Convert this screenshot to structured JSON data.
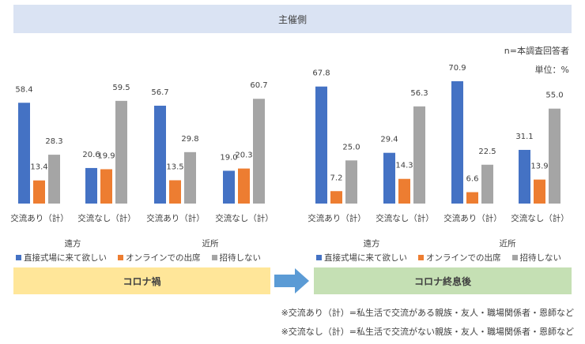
{
  "header": {
    "title": "主催側"
  },
  "notes": {
    "n": "n=本調査回答者",
    "unit": "単位：%"
  },
  "colors": {
    "direct": "#4472c4",
    "online": "#ed7d31",
    "invite": "#a5a5a5",
    "header_bg": "#dae3f3",
    "corona_bg": "#ffe699",
    "post_bg": "#c5e0b4",
    "arrow": "#5b9bd5"
  },
  "chart_data": [
    {
      "type": "bar",
      "panel": "コロナ禍",
      "categories": [
        "交流あり（計）",
        "交流なし（計）",
        "交流あり（計）",
        "交流なし（計）"
      ],
      "groups": [
        {
          "label": "遠方"
        },
        {
          "label": "近所"
        }
      ],
      "series": [
        {
          "name": "直接式場に来て欲しい",
          "values": [
            58.4,
            20.6,
            56.7,
            19.0
          ]
        },
        {
          "name": "オンラインでの出席",
          "values": [
            13.4,
            19.9,
            13.5,
            20.3
          ]
        },
        {
          "name": "招待しない",
          "values": [
            28.3,
            59.5,
            29.8,
            60.7
          ]
        }
      ],
      "ylim": [
        0,
        80
      ]
    },
    {
      "type": "bar",
      "panel": "コロナ終息後",
      "categories": [
        "交流あり（計）",
        "交流なし（計）",
        "交流あり（計）",
        "交流なし（計）"
      ],
      "groups": [
        {
          "label": "遠方"
        },
        {
          "label": "近所"
        }
      ],
      "series": [
        {
          "name": "直接式場に来て欲しい",
          "values": [
            67.8,
            29.4,
            70.9,
            31.1
          ]
        },
        {
          "name": "オンラインでの出席",
          "values": [
            7.2,
            14.3,
            6.6,
            13.9
          ]
        },
        {
          "name": "招待しない",
          "values": [
            25.0,
            56.3,
            22.5,
            55.0
          ]
        }
      ],
      "ylim": [
        0,
        80
      ]
    }
  ],
  "banners": {
    "left": "コロナ禍",
    "right": "コロナ終息後"
  },
  "footnotes": [
    "※交流あり（計）=私生活で交流がある親族・友人・職場関係者・恩師など",
    "※交流なし（計）=私生活で交流がない親族・友人・職場関係者・恩師など"
  ]
}
